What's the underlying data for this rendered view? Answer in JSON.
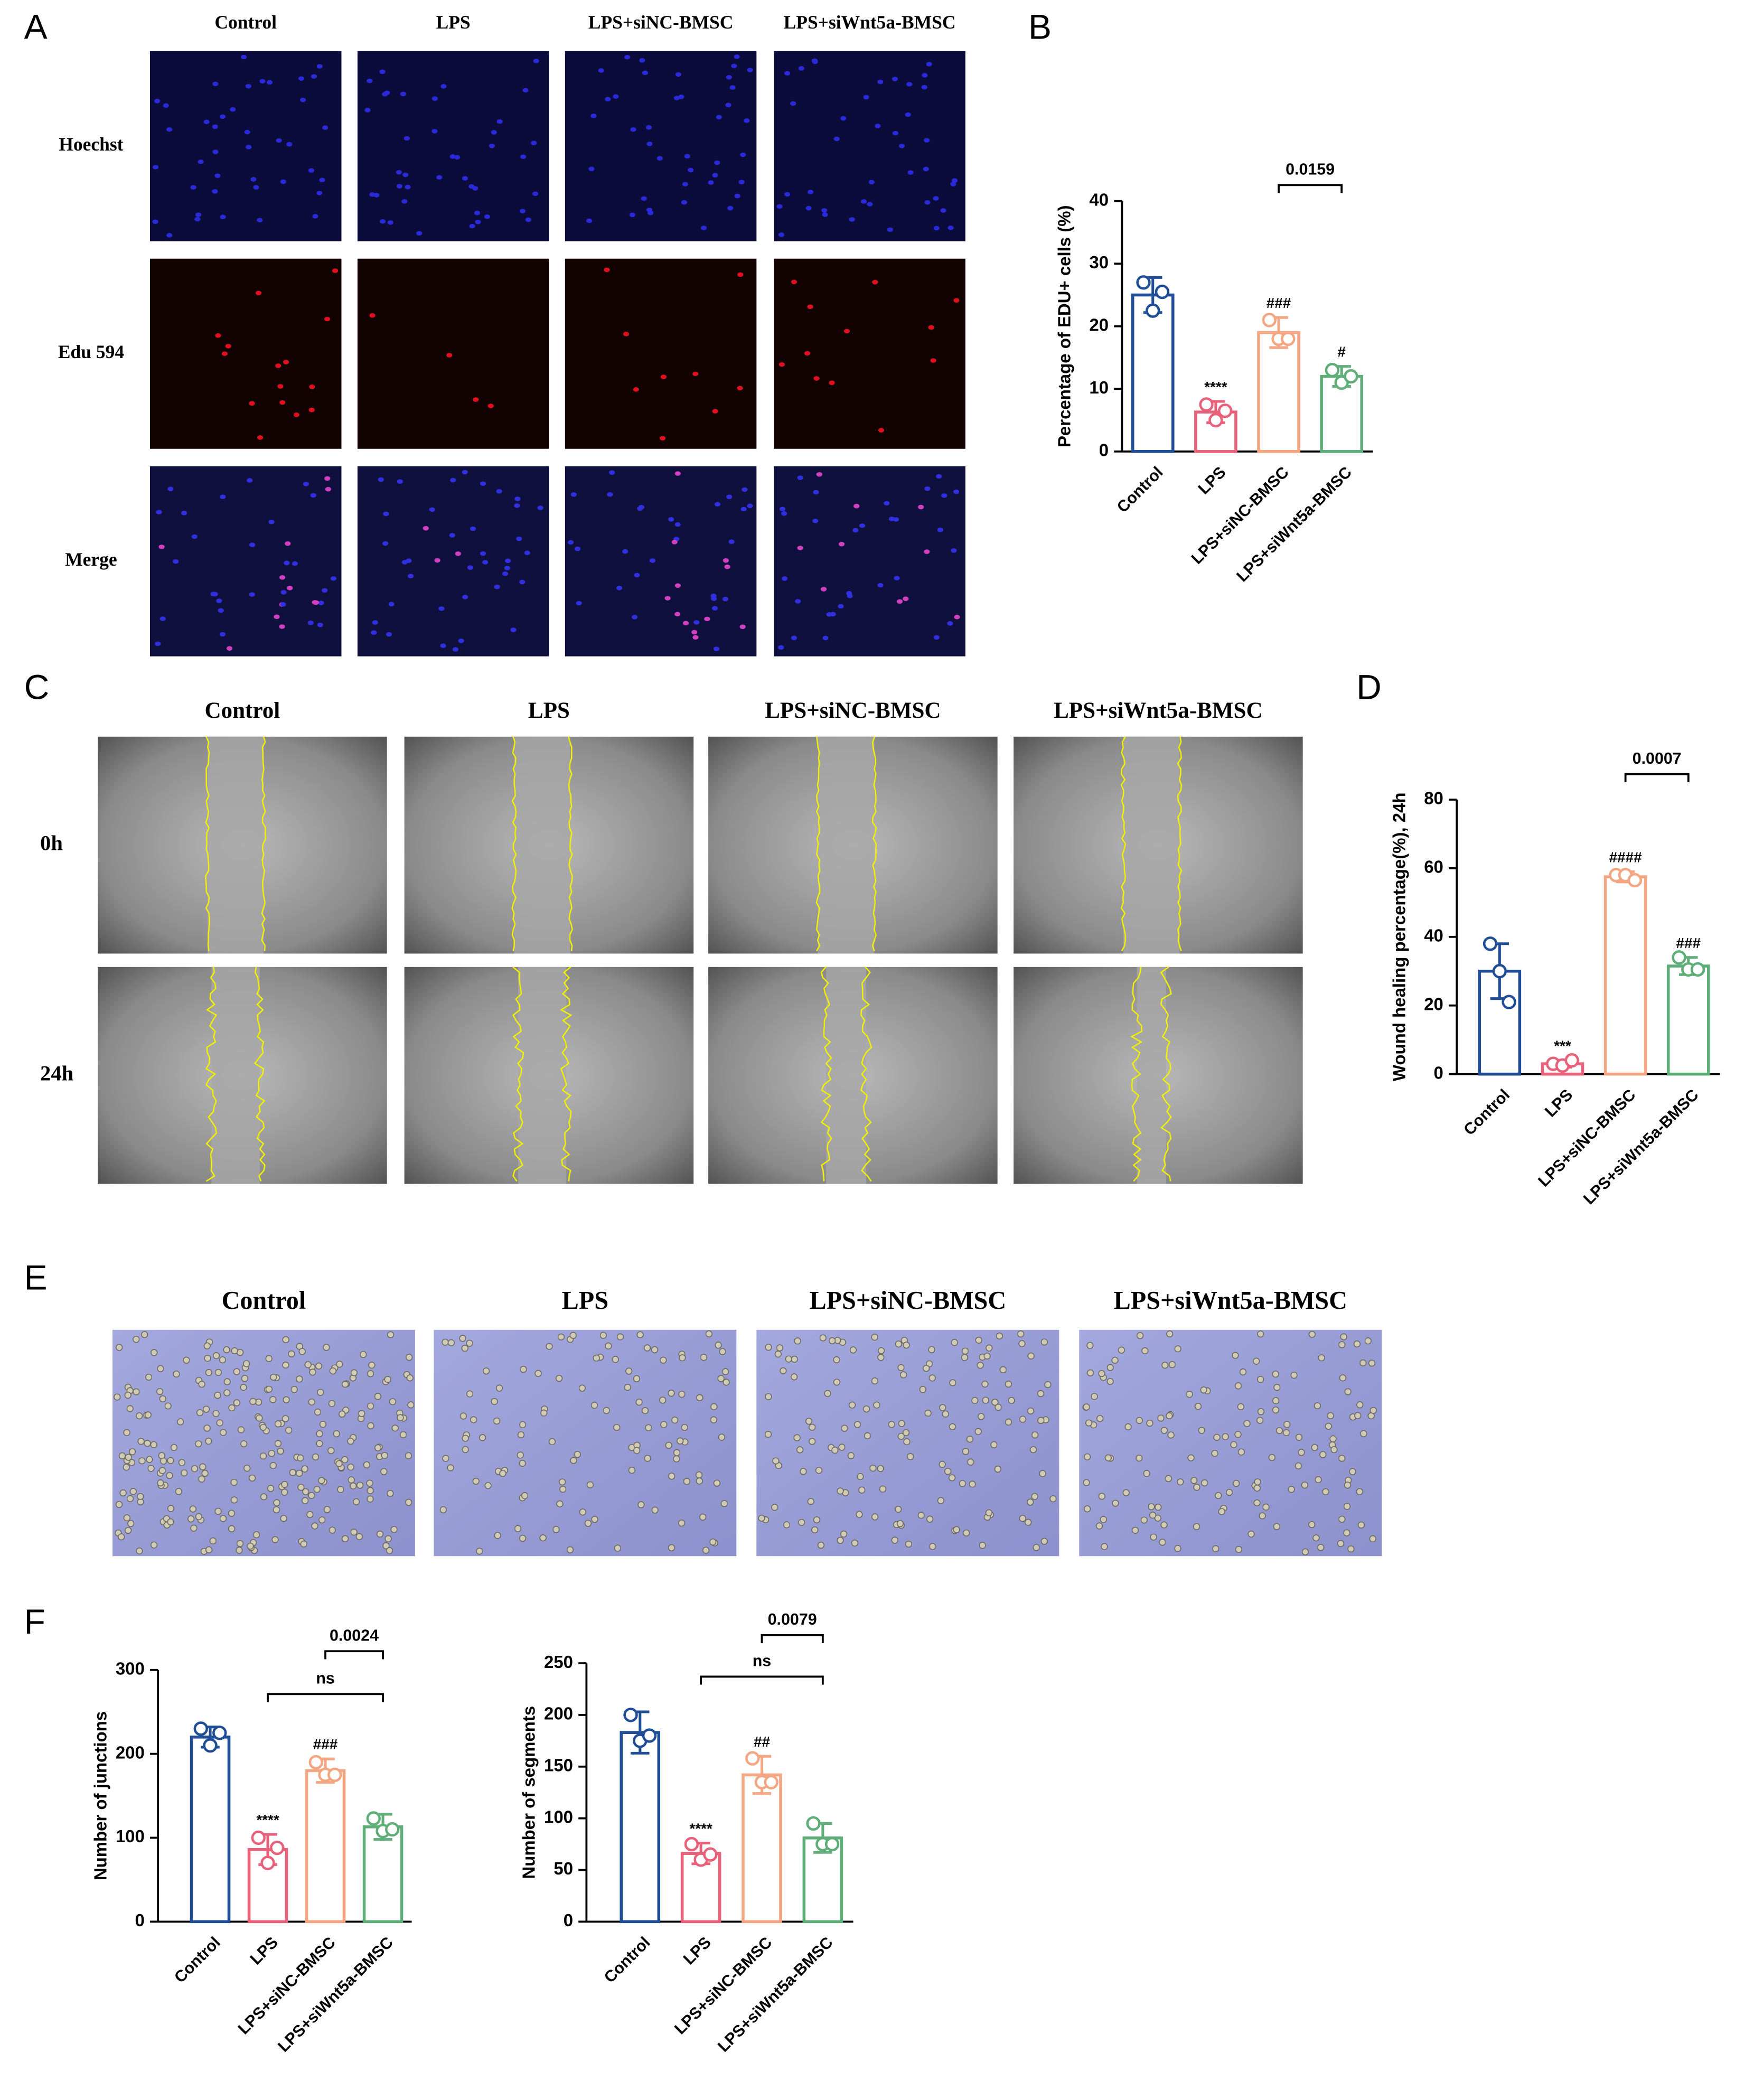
{
  "panel_labels": [
    "A",
    "B",
    "C",
    "D",
    "E",
    "F"
  ],
  "image_panels": [
    {
      "columns": [
        "Control",
        "LPS",
        "LPS+siNC-BMSC",
        "LPS+siWnt5a-BMSC"
      ],
      "rows": [
        "Hoechst",
        "Edu 594",
        "Merge"
      ]
    },
    {
      "columns": [
        "Control",
        "LPS",
        "LPS+siNC-BMSC",
        "LPS+siWnt5a-BMSC"
      ],
      "rows": [
        "0h",
        "24h"
      ]
    },
    {
      "columns": [
        "Control",
        "LPS",
        "LPS+siNC-BMSC",
        "LPS+siWnt5a-BMSC"
      ]
    }
  ],
  "chart_data": [
    {
      "type": "bar",
      "ylabel": "Percentage of EDU+ cells (%)",
      "categories": [
        "Control",
        "LPS",
        "LPS+siNC-BMSC",
        "LPS+siWnt5a-BMSC"
      ],
      "colors": [
        "#1f4e96",
        "#e8607a",
        "#f4a582",
        "#5fae7a"
      ],
      "values": [
        25,
        6.3,
        19,
        12
      ],
      "errors": [
        2.8,
        1.7,
        2.4,
        1.6
      ],
      "points": [
        [
          27,
          22.5,
          25.5
        ],
        [
          7.5,
          5,
          6.5
        ],
        [
          21,
          18,
          18
        ],
        [
          13,
          11,
          12
        ]
      ],
      "annotations": [
        null,
        "****",
        "###",
        "#"
      ],
      "brackets": [
        {
          "from": 2,
          "to": 3,
          "label": "0.0159"
        }
      ],
      "ylim": [
        0,
        40
      ],
      "yticks": [
        0,
        10,
        20,
        30,
        40
      ]
    },
    {
      "type": "bar",
      "ylabel": "Wound healing percentage(%), 24h",
      "categories": [
        "Control",
        "LPS",
        "LPS+siNC-BMSC",
        "LPS+siWnt5a-BMSC"
      ],
      "colors": [
        "#1f4e96",
        "#e8607a",
        "#f4a582",
        "#5fae7a"
      ],
      "values": [
        30,
        3,
        57.5,
        31.5
      ],
      "errors": [
        8,
        1,
        1.5,
        2.5
      ],
      "points": [
        [
          38,
          30,
          21
        ],
        [
          3,
          2.5,
          4
        ],
        [
          58,
          58,
          56.5
        ],
        [
          34,
          30.5,
          30.5
        ]
      ],
      "annotations": [
        null,
        "***",
        "####",
        "###"
      ],
      "brackets": [
        {
          "from": 2,
          "to": 3,
          "label": "0.0007"
        }
      ],
      "ylim": [
        0,
        80
      ],
      "yticks": [
        0,
        20,
        40,
        60,
        80
      ]
    },
    {
      "type": "bar",
      "ylabel": "Number of junctions",
      "categories": [
        "Control",
        "LPS",
        "LPS+siNC-BMSC",
        "LPS+siWnt5a-BMSC"
      ],
      "colors": [
        "#1f4e96",
        "#e8607a",
        "#f4a582",
        "#5fae7a"
      ],
      "values": [
        220,
        86,
        180,
        113
      ],
      "errors": [
        12,
        18,
        14,
        15
      ],
      "points": [
        [
          230,
          210,
          225
        ],
        [
          100,
          70,
          88
        ],
        [
          190,
          175,
          175
        ],
        [
          123,
          108,
          110
        ]
      ],
      "annotations": [
        null,
        "****",
        "###",
        null
      ],
      "brackets": [
        {
          "from": 1,
          "to": 3,
          "label": "ns"
        },
        {
          "from": 2,
          "to": 3,
          "label": "0.0024"
        }
      ],
      "ylim": [
        0,
        300
      ],
      "yticks": [
        0,
        100,
        200,
        300
      ]
    },
    {
      "type": "bar",
      "ylabel": "Number of segments",
      "categories": [
        "Control",
        "LPS",
        "LPS+siNC-BMSC",
        "LPS+siWnt5a-BMSC"
      ],
      "colors": [
        "#1f4e96",
        "#e8607a",
        "#f4a582",
        "#5fae7a"
      ],
      "values": [
        183,
        66,
        142,
        81
      ],
      "errors": [
        20,
        10,
        18,
        14
      ],
      "points": [
        [
          200,
          175,
          180
        ],
        [
          75,
          60,
          65
        ],
        [
          158,
          135,
          135
        ],
        [
          95,
          75,
          75
        ]
      ],
      "annotations": [
        null,
        "****",
        "##",
        null
      ],
      "brackets": [
        {
          "from": 1,
          "to": 3,
          "label": "ns"
        },
        {
          "from": 2,
          "to": 3,
          "label": "0.0079"
        }
      ],
      "ylim": [
        0,
        250
      ],
      "yticks": [
        0,
        50,
        100,
        150,
        200,
        250
      ]
    }
  ]
}
